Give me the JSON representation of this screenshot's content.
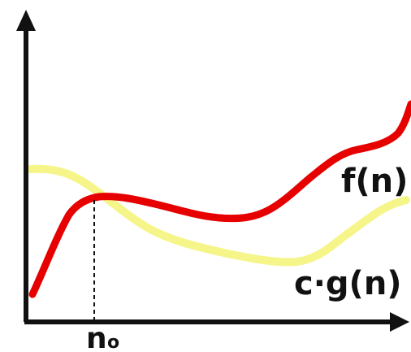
{
  "labels": {
    "f": "f(n)",
    "cg": "c·g(n)",
    "n0_main": "n",
    "n0_sub": "o"
  },
  "colors": {
    "f_curve": "#e60000",
    "cg_curve": "#f6f58a",
    "axis": "#111111",
    "background": "#ffffff"
  },
  "icons": {
    "y_axis_arrow": "arrow-up-icon",
    "x_axis_arrow": "arrow-right-icon"
  }
}
